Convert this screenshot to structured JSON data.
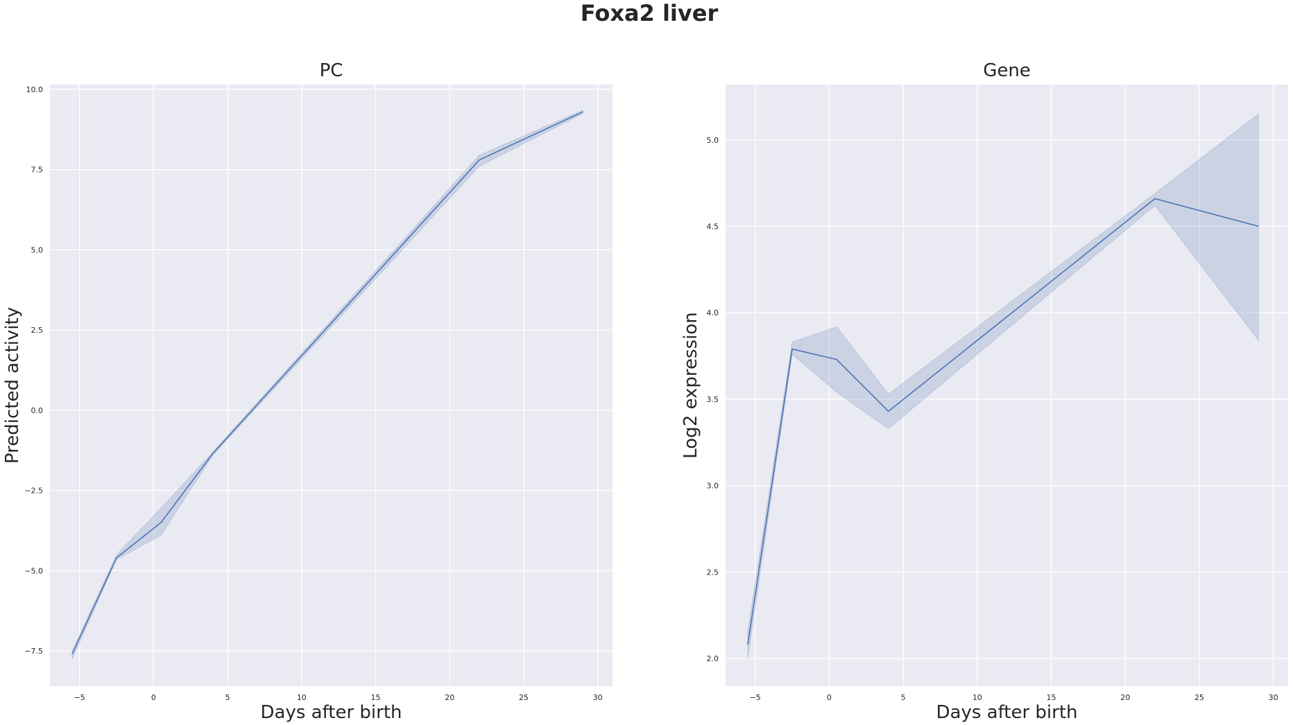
{
  "suptitle": "Foxa2 liver",
  "colors": {
    "line": "#4c72b0",
    "band": "#4c72b0",
    "plot_bg": "#eaeaf2",
    "grid": "#ffffff",
    "text": "#262626"
  },
  "chart_data": [
    {
      "type": "line",
      "title": "PC",
      "xlabel": "Days after birth",
      "ylabel": "Predicted activity",
      "grid": true,
      "xlim": [
        -7,
        31
      ],
      "ylim": [
        -8.6,
        10.15
      ],
      "xticks": [
        -5,
        0,
        5,
        10,
        15,
        20,
        25,
        30
      ],
      "xtick_labels": [
        "−5",
        "0",
        "5",
        "10",
        "15",
        "20",
        "25",
        "30"
      ],
      "yticks": [
        -7.5,
        -5.0,
        -2.5,
        0.0,
        2.5,
        5.0,
        7.5,
        10.0
      ],
      "ytick_labels": [
        "−7.5",
        "−5.0",
        "−2.5",
        "0.0",
        "2.5",
        "5.0",
        "7.5",
        "10.0"
      ],
      "series": [
        {
          "x": [
            -5.5,
            -2.5,
            0.5,
            4,
            22,
            29
          ],
          "y": [
            -7.6,
            -4.6,
            -3.5,
            -1.35,
            7.8,
            9.3
          ],
          "lower": [
            -7.75,
            -4.65,
            -3.9,
            -1.4,
            7.6,
            9.25
          ],
          "upper": [
            -7.5,
            -4.5,
            -3.05,
            -1.3,
            7.95,
            9.35
          ]
        }
      ]
    },
    {
      "type": "line",
      "title": "Gene",
      "xlabel": "Days after birth",
      "ylabel": "Log2 expression",
      "grid": true,
      "xlim": [
        -7,
        31
      ],
      "ylim": [
        1.84,
        5.32
      ],
      "xticks": [
        -5,
        0,
        5,
        10,
        15,
        20,
        25,
        30
      ],
      "xtick_labels": [
        "−5",
        "0",
        "5",
        "10",
        "15",
        "20",
        "25",
        "30"
      ],
      "yticks": [
        2.0,
        2.5,
        3.0,
        3.5,
        4.0,
        4.5,
        5.0
      ],
      "ytick_labels": [
        "2.0",
        "2.5",
        "3.0",
        "3.5",
        "4.0",
        "4.5",
        "5.0"
      ],
      "series": [
        {
          "x": [
            -5.5,
            -2.5,
            0.5,
            4,
            22,
            29
          ],
          "y": [
            2.08,
            3.79,
            3.73,
            3.43,
            4.66,
            4.5
          ],
          "lower": [
            2.0,
            3.76,
            3.54,
            3.33,
            4.62,
            3.84
          ],
          "upper": [
            2.16,
            3.83,
            3.92,
            3.53,
            4.69,
            5.15
          ]
        }
      ]
    }
  ]
}
